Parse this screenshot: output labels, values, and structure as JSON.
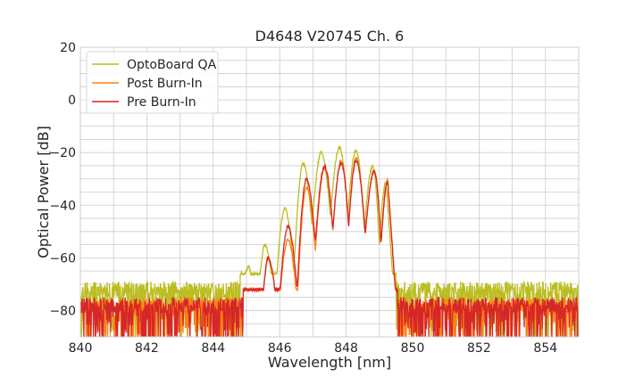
{
  "chart_data": {
    "type": "line",
    "title": "D4648 V20745 Ch. 6",
    "xlabel": "Wavelength [nm]",
    "ylabel": "Optical Power [dB]",
    "xlim": [
      840,
      855
    ],
    "ylim": [
      -90,
      20
    ],
    "xticks": [
      840,
      842,
      844,
      846,
      848,
      850,
      852,
      854
    ],
    "yticks": [
      -80,
      -60,
      -40,
      -20,
      0,
      20
    ],
    "xtick_labels": [
      "840",
      "842",
      "844",
      "846",
      "848",
      "850",
      "852",
      "854"
    ],
    "ytick_labels": [
      "−80",
      "−60",
      "−40",
      "−20",
      "0",
      "20"
    ],
    "grid": true,
    "legend_position": "top-left",
    "series": [
      {
        "name": "OptoBoard QA",
        "color": "#bcbd22",
        "noise_floor": -72,
        "peaks": [
          {
            "x": 845.05,
            "y": -63
          },
          {
            "x": 845.55,
            "y": -55
          },
          {
            "x": 846.15,
            "y": -41
          },
          {
            "x": 846.7,
            "y": -24
          },
          {
            "x": 847.25,
            "y": -20
          },
          {
            "x": 847.8,
            "y": -18
          },
          {
            "x": 848.3,
            "y": -19
          },
          {
            "x": 848.8,
            "y": -25
          },
          {
            "x": 849.2,
            "y": -31
          }
        ]
      },
      {
        "name": "Post Burn-In",
        "color": "#ff7f0e",
        "noise_floor": -78,
        "peaks": [
          {
            "x": 845.15,
            "y": -72
          },
          {
            "x": 845.65,
            "y": -60
          },
          {
            "x": 846.25,
            "y": -53
          },
          {
            "x": 846.8,
            "y": -33
          },
          {
            "x": 847.35,
            "y": -26
          },
          {
            "x": 847.85,
            "y": -23
          },
          {
            "x": 848.3,
            "y": -22
          },
          {
            "x": 848.85,
            "y": -27
          },
          {
            "x": 849.25,
            "y": -30
          }
        ]
      },
      {
        "name": "Pre Burn-In",
        "color": "#d62728",
        "noise_floor": -78,
        "peaks": [
          {
            "x": 845.15,
            "y": -72
          },
          {
            "x": 845.65,
            "y": -60
          },
          {
            "x": 846.25,
            "y": -48
          },
          {
            "x": 846.8,
            "y": -30
          },
          {
            "x": 847.35,
            "y": -25
          },
          {
            "x": 847.85,
            "y": -24
          },
          {
            "x": 848.3,
            "y": -23
          },
          {
            "x": 848.85,
            "y": -27
          },
          {
            "x": 849.25,
            "y": -31
          }
        ]
      }
    ]
  }
}
